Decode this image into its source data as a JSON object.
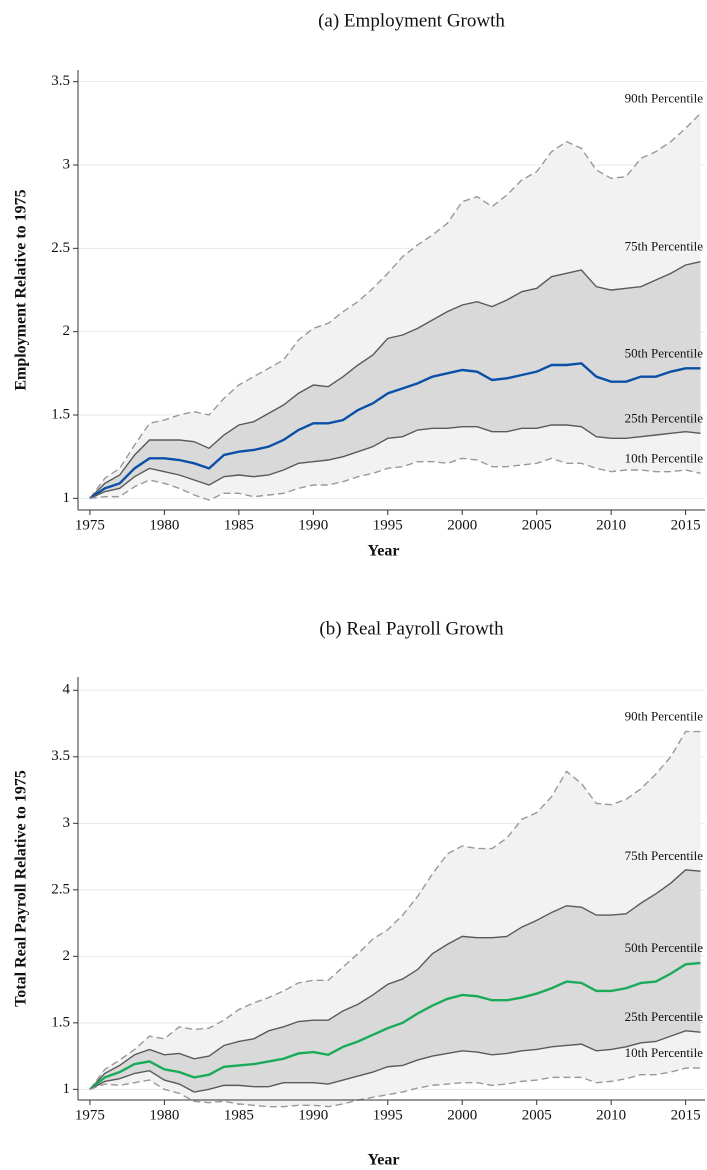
{
  "chart_data": [
    {
      "type": "line",
      "title": "(a) Employment Growth",
      "x_label": "Year",
      "y_label": "Employment Relative to 1975",
      "x": [
        1975,
        1976,
        1977,
        1978,
        1979,
        1980,
        1981,
        1982,
        1983,
        1984,
        1985,
        1986,
        1987,
        1988,
        1989,
        1990,
        1991,
        1992,
        1993,
        1994,
        1995,
        1996,
        1997,
        1998,
        1999,
        2000,
        2001,
        2002,
        2003,
        2004,
        2005,
        2006,
        2007,
        2008,
        2009,
        2010,
        2011,
        2012,
        2013,
        2014,
        2015,
        2016
      ],
      "xlim": [
        1974.2,
        2016.3
      ],
      "xticks": [
        1975,
        1980,
        1985,
        1990,
        1995,
        2000,
        2005,
        2010,
        2015
      ],
      "ylim": [
        0.93,
        3.57
      ],
      "yticks": [
        1,
        1.5,
        2,
        2.5,
        3,
        3.5
      ],
      "grid": true,
      "band_colors": [
        "#f2f2f2",
        "#d9d9d9"
      ],
      "series": [
        {
          "name": "90th Percentile",
          "color": "#999999",
          "line_style": "dashed",
          "values": [
            1.0,
            1.12,
            1.18,
            1.32,
            1.45,
            1.47,
            1.5,
            1.52,
            1.5,
            1.6,
            1.68,
            1.73,
            1.78,
            1.83,
            1.95,
            2.02,
            2.05,
            2.12,
            2.18,
            2.26,
            2.35,
            2.45,
            2.52,
            2.58,
            2.65,
            2.78,
            2.81,
            2.75,
            2.82,
            2.91,
            2.96,
            3.08,
            3.14,
            3.1,
            2.97,
            2.92,
            2.93,
            3.04,
            3.08,
            3.14,
            3.22,
            3.31
          ]
        },
        {
          "name": "75th Percentile",
          "color": "#5a5a5a",
          "line_style": "solid",
          "values": [
            1.0,
            1.09,
            1.14,
            1.26,
            1.35,
            1.35,
            1.35,
            1.34,
            1.3,
            1.38,
            1.44,
            1.46,
            1.51,
            1.56,
            1.63,
            1.68,
            1.67,
            1.73,
            1.8,
            1.86,
            1.96,
            1.98,
            2.02,
            2.07,
            2.12,
            2.16,
            2.18,
            2.15,
            2.19,
            2.24,
            2.26,
            2.33,
            2.35,
            2.37,
            2.27,
            2.25,
            2.26,
            2.27,
            2.31,
            2.35,
            2.4,
            2.42
          ]
        },
        {
          "name": "50th Percentile",
          "color": "#0a4fa8",
          "line_style": "solid",
          "values": [
            1.0,
            1.06,
            1.09,
            1.18,
            1.24,
            1.24,
            1.23,
            1.21,
            1.18,
            1.26,
            1.28,
            1.29,
            1.31,
            1.35,
            1.41,
            1.45,
            1.45,
            1.47,
            1.53,
            1.57,
            1.63,
            1.66,
            1.69,
            1.73,
            1.75,
            1.77,
            1.76,
            1.71,
            1.72,
            1.74,
            1.76,
            1.8,
            1.8,
            1.81,
            1.73,
            1.7,
            1.7,
            1.73,
            1.73,
            1.76,
            1.78,
            1.78
          ]
        },
        {
          "name": "25th Percentile",
          "color": "#5a5a5a",
          "line_style": "solid",
          "values": [
            1.0,
            1.04,
            1.06,
            1.13,
            1.18,
            1.16,
            1.14,
            1.11,
            1.08,
            1.13,
            1.14,
            1.13,
            1.14,
            1.17,
            1.21,
            1.22,
            1.23,
            1.25,
            1.28,
            1.31,
            1.36,
            1.37,
            1.41,
            1.42,
            1.42,
            1.43,
            1.43,
            1.4,
            1.4,
            1.42,
            1.42,
            1.44,
            1.44,
            1.43,
            1.37,
            1.36,
            1.36,
            1.37,
            1.38,
            1.39,
            1.4,
            1.39
          ]
        },
        {
          "name": "10th Percentile",
          "color": "#999999",
          "line_style": "dashed",
          "values": [
            1.0,
            1.01,
            1.01,
            1.07,
            1.11,
            1.09,
            1.06,
            1.02,
            0.99,
            1.03,
            1.03,
            1.01,
            1.02,
            1.03,
            1.06,
            1.08,
            1.08,
            1.1,
            1.13,
            1.15,
            1.18,
            1.19,
            1.22,
            1.22,
            1.21,
            1.24,
            1.23,
            1.19,
            1.19,
            1.2,
            1.21,
            1.24,
            1.21,
            1.21,
            1.18,
            1.16,
            1.17,
            1.17,
            1.16,
            1.16,
            1.17,
            1.15
          ]
        }
      ]
    },
    {
      "type": "line",
      "title": "(b) Real Payroll Growth",
      "x_label": "Year",
      "y_label": "Total Real Payroll Relative to 1975",
      "x": [
        1975,
        1976,
        1977,
        1978,
        1979,
        1980,
        1981,
        1982,
        1983,
        1984,
        1985,
        1986,
        1987,
        1988,
        1989,
        1990,
        1991,
        1992,
        1993,
        1994,
        1995,
        1996,
        1997,
        1998,
        1999,
        2000,
        2001,
        2002,
        2003,
        2004,
        2005,
        2006,
        2007,
        2008,
        2009,
        2010,
        2011,
        2012,
        2013,
        2014,
        2015,
        2016
      ],
      "xlim": [
        1974.2,
        2016.3
      ],
      "xticks": [
        1975,
        1980,
        1985,
        1990,
        1995,
        2000,
        2005,
        2010,
        2015
      ],
      "ylim": [
        0.92,
        4.1
      ],
      "yticks": [
        1,
        1.5,
        2,
        2.5,
        3,
        3.5,
        4
      ],
      "grid": true,
      "band_colors": [
        "#f2f2f2",
        "#d9d9d9"
      ],
      "series": [
        {
          "name": "90th Percentile",
          "color": "#999999",
          "line_style": "dashed",
          "values": [
            1.0,
            1.15,
            1.22,
            1.3,
            1.4,
            1.38,
            1.47,
            1.45,
            1.46,
            1.52,
            1.6,
            1.65,
            1.69,
            1.74,
            1.8,
            1.82,
            1.82,
            1.92,
            2.02,
            2.13,
            2.2,
            2.31,
            2.45,
            2.62,
            2.77,
            2.83,
            2.81,
            2.81,
            2.89,
            3.03,
            3.08,
            3.2,
            3.39,
            3.3,
            3.15,
            3.14,
            3.18,
            3.26,
            3.37,
            3.5,
            3.69,
            3.69
          ]
        },
        {
          "name": "75th Percentile",
          "color": "#5a5a5a",
          "line_style": "solid",
          "values": [
            1.0,
            1.12,
            1.18,
            1.26,
            1.3,
            1.26,
            1.27,
            1.23,
            1.25,
            1.33,
            1.36,
            1.38,
            1.44,
            1.47,
            1.51,
            1.52,
            1.52,
            1.59,
            1.64,
            1.71,
            1.79,
            1.83,
            1.9,
            2.02,
            2.09,
            2.15,
            2.14,
            2.14,
            2.15,
            2.22,
            2.27,
            2.33,
            2.38,
            2.37,
            2.31,
            2.31,
            2.32,
            2.4,
            2.47,
            2.55,
            2.65,
            2.64
          ]
        },
        {
          "name": "50th Percentile",
          "color": "#1aab5a",
          "line_style": "solid",
          "values": [
            1.0,
            1.09,
            1.13,
            1.19,
            1.21,
            1.15,
            1.13,
            1.09,
            1.11,
            1.17,
            1.18,
            1.19,
            1.21,
            1.23,
            1.27,
            1.28,
            1.26,
            1.32,
            1.36,
            1.41,
            1.46,
            1.5,
            1.57,
            1.63,
            1.68,
            1.71,
            1.7,
            1.67,
            1.67,
            1.69,
            1.72,
            1.76,
            1.81,
            1.8,
            1.74,
            1.74,
            1.76,
            1.8,
            1.81,
            1.87,
            1.94,
            1.95
          ]
        },
        {
          "name": "25th Percentile",
          "color": "#5a5a5a",
          "line_style": "solid",
          "values": [
            1.0,
            1.06,
            1.08,
            1.12,
            1.14,
            1.07,
            1.04,
            0.98,
            1.0,
            1.03,
            1.03,
            1.02,
            1.02,
            1.05,
            1.05,
            1.05,
            1.04,
            1.07,
            1.1,
            1.13,
            1.17,
            1.18,
            1.22,
            1.25,
            1.27,
            1.29,
            1.28,
            1.26,
            1.27,
            1.29,
            1.3,
            1.32,
            1.33,
            1.34,
            1.29,
            1.3,
            1.32,
            1.35,
            1.36,
            1.4,
            1.44,
            1.43
          ]
        },
        {
          "name": "10th Percentile",
          "color": "#999999",
          "line_style": "dashed",
          "values": [
            1.0,
            1.04,
            1.03,
            1.05,
            1.07,
            1.0,
            0.97,
            0.91,
            0.9,
            0.91,
            0.89,
            0.88,
            0.87,
            0.87,
            0.88,
            0.88,
            0.87,
            0.89,
            0.92,
            0.94,
            0.96,
            0.98,
            1.01,
            1.03,
            1.04,
            1.05,
            1.05,
            1.03,
            1.04,
            1.06,
            1.07,
            1.09,
            1.09,
            1.09,
            1.05,
            1.06,
            1.08,
            1.11,
            1.11,
            1.13,
            1.16,
            1.16
          ]
        }
      ]
    }
  ]
}
